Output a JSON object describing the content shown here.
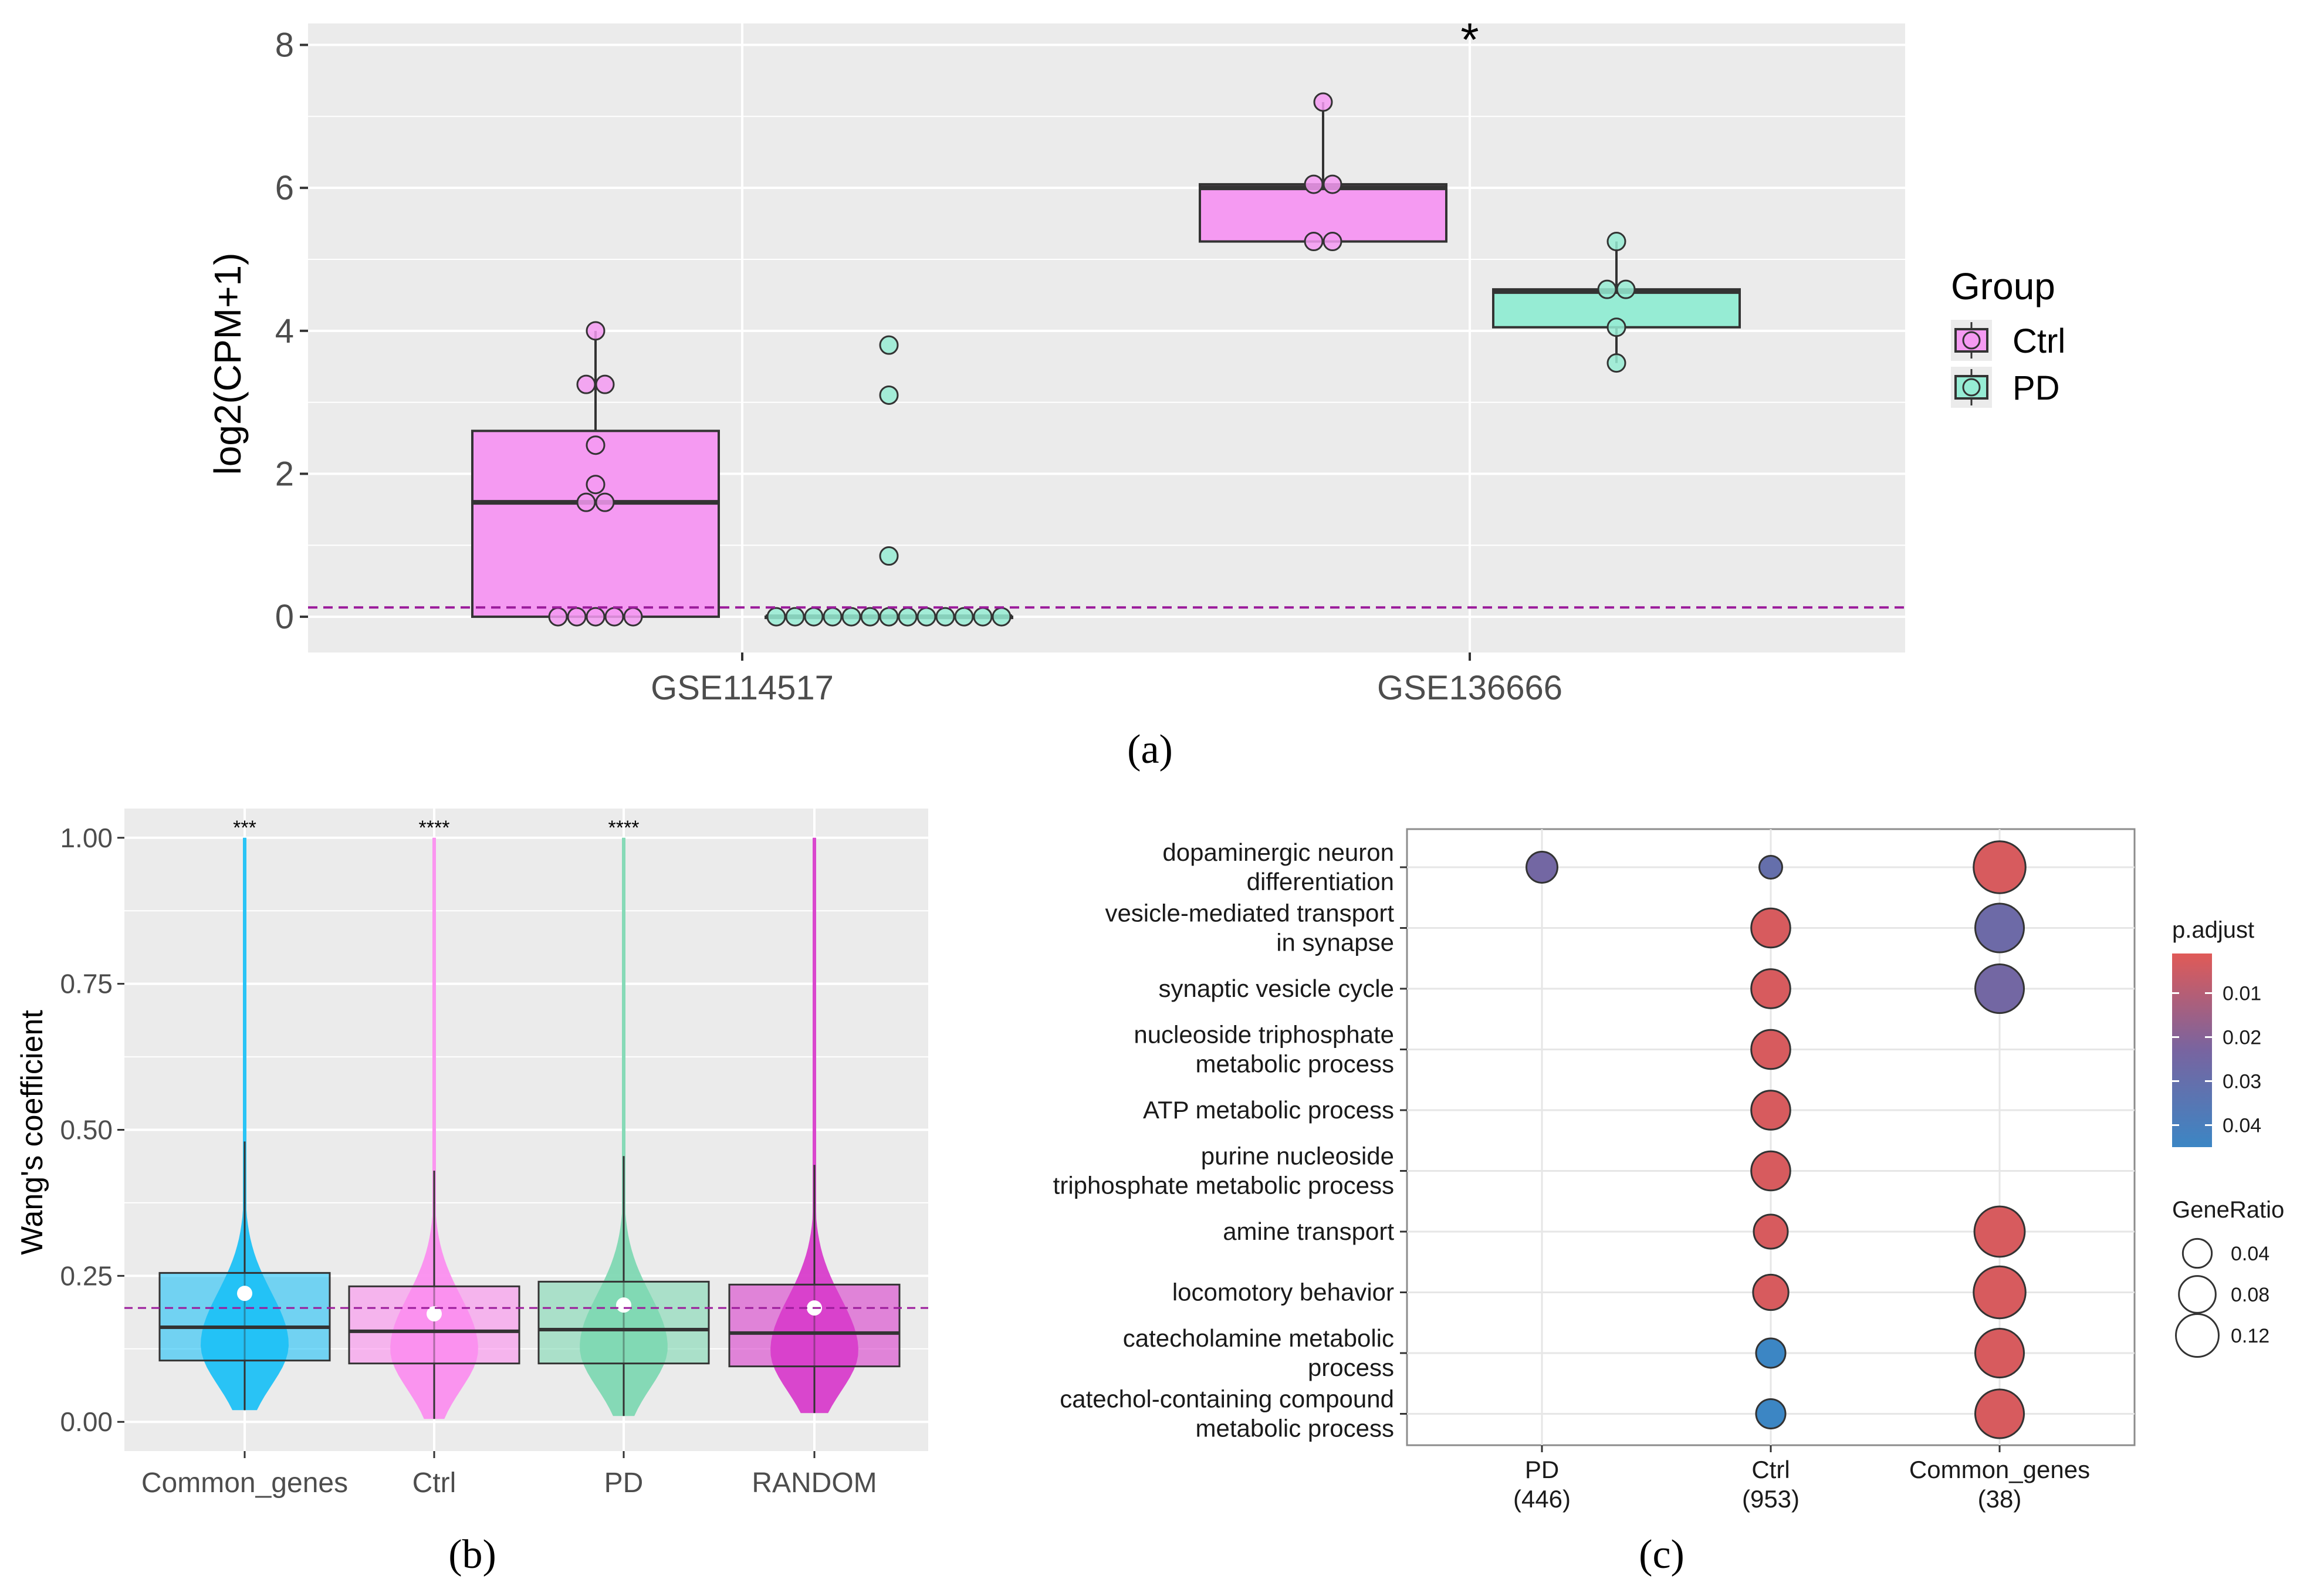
{
  "chart_data": [
    {
      "panel_label": "(a)",
      "type": "box",
      "ylabel": "log2(CPM+1)",
      "xlabel": "",
      "ylim": [
        -0.5,
        8.3
      ],
      "yticks": [
        0,
        2,
        4,
        6,
        8
      ],
      "categories": [
        "GSE114517",
        "GSE136666"
      ],
      "threshold": 0.13,
      "grid": true,
      "legend": {
        "title": "Group",
        "position": "right",
        "entries": [
          "Ctrl",
          "PD"
        ]
      },
      "series": [
        {
          "name": "Ctrl",
          "color": "#F59AF2",
          "boxes": [
            {
              "category": "GSE114517",
              "q1": 0,
              "median": 1.6,
              "q3": 2.6,
              "low": 0,
              "high": 4.0,
              "points": [
                4.0,
                3.25,
                3.25,
                2.4,
                1.85,
                1.6,
                1.6,
                0,
                0,
                0,
                0,
                0
              ]
            },
            {
              "category": "GSE136666",
              "q1": 5.25,
              "median": 6.0,
              "q3": 6.05,
              "low": 5.25,
              "high": 7.2,
              "points": [
                7.2,
                6.05,
                6.05,
                5.25,
                5.25
              ]
            }
          ]
        },
        {
          "name": "PD",
          "color": "#96ECD4",
          "boxes": [
            {
              "category": "GSE114517",
              "q1": 0,
              "median": 0,
              "q3": 0,
              "low": 0,
              "high": 0,
              "points": [
                3.8,
                3.1,
                0.85,
                0,
                0,
                0,
                0,
                0,
                0,
                0,
                0,
                0,
                0,
                0,
                0,
                0
              ]
            },
            {
              "category": "GSE136666",
              "q1": 4.05,
              "median": 4.55,
              "q3": 4.58,
              "low": 3.55,
              "high": 5.25,
              "points": [
                5.25,
                4.58,
                4.58,
                4.05,
                3.55
              ]
            }
          ]
        }
      ],
      "annotations": [
        {
          "category": "GSE136666",
          "text": "*"
        }
      ]
    },
    {
      "panel_label": "(b)",
      "type": "violin-box",
      "ylabel": "Wang's coefficient",
      "xlabel": "",
      "ylim": [
        -0.05,
        1.05
      ],
      "yticks": [
        "0.00",
        "0.25",
        "0.50",
        "0.75",
        "1.00"
      ],
      "threshold": 0.195,
      "categories": [
        "Common_genes",
        "Ctrl",
        "PD",
        "RANDOM"
      ],
      "colors": [
        "#1FC1F6",
        "#FB8FEF",
        "#7FD8B3",
        "#D83DCB"
      ],
      "box": [
        {
          "q1": 0.105,
          "median": 0.162,
          "q3": 0.255,
          "low": 0.02,
          "high": 0.48,
          "mean": 0.22,
          "sig": "***"
        },
        {
          "q1": 0.1,
          "median": 0.155,
          "q3": 0.232,
          "low": 0.005,
          "high": 0.43,
          "mean": 0.185,
          "sig": "****"
        },
        {
          "q1": 0.1,
          "median": 0.158,
          "q3": 0.24,
          "low": 0.01,
          "high": 0.455,
          "mean": 0.2,
          "sig": "****"
        },
        {
          "q1": 0.095,
          "median": 0.152,
          "q3": 0.235,
          "low": 0.015,
          "high": 0.44,
          "mean": 0.195,
          "sig": ""
        }
      ],
      "grid": true
    },
    {
      "panel_label": "(c)",
      "type": "dot",
      "categories": [
        "PD",
        "Ctrl",
        "Common_genes"
      ],
      "category_counts": [
        "(446)",
        "(953)",
        "(38)"
      ],
      "terms": [
        [
          "dopaminergic neuron",
          "differentiation"
        ],
        [
          "vesicle-mediated transport",
          "in synapse"
        ],
        [
          "synaptic vesicle cycle"
        ],
        [
          "nucleoside triphosphate",
          "metabolic process"
        ],
        [
          "ATP metabolic process"
        ],
        [
          "purine nucleoside",
          "triphosphate metabolic process"
        ],
        [
          "amine transport"
        ],
        [
          "locomotory behavior"
        ],
        [
          "catecholamine metabolic",
          "process"
        ],
        [
          "catechol-containing compound",
          "metabolic process"
        ]
      ],
      "points": [
        {
          "term": 0,
          "cat": 0,
          "gene_ratio": 0.03,
          "p_adjust": 0.025
        },
        {
          "term": 0,
          "cat": 1,
          "gene_ratio": 0.01,
          "p_adjust": 0.03
        },
        {
          "term": 0,
          "cat": 2,
          "gene_ratio": 0.13,
          "p_adjust": 0.003
        },
        {
          "term": 1,
          "cat": 1,
          "gene_ratio": 0.06,
          "p_adjust": 0.003
        },
        {
          "term": 1,
          "cat": 2,
          "gene_ratio": 0.11,
          "p_adjust": 0.027
        },
        {
          "term": 2,
          "cat": 1,
          "gene_ratio": 0.06,
          "p_adjust": 0.003
        },
        {
          "term": 2,
          "cat": 2,
          "gene_ratio": 0.11,
          "p_adjust": 0.025
        },
        {
          "term": 3,
          "cat": 1,
          "gene_ratio": 0.06,
          "p_adjust": 0.003
        },
        {
          "term": 4,
          "cat": 1,
          "gene_ratio": 0.06,
          "p_adjust": 0.003
        },
        {
          "term": 5,
          "cat": 1,
          "gene_ratio": 0.06,
          "p_adjust": 0.003
        },
        {
          "term": 6,
          "cat": 1,
          "gene_ratio": 0.04,
          "p_adjust": 0.003
        },
        {
          "term": 6,
          "cat": 2,
          "gene_ratio": 0.12,
          "p_adjust": 0.003
        },
        {
          "term": 7,
          "cat": 1,
          "gene_ratio": 0.045,
          "p_adjust": 0.003
        },
        {
          "term": 7,
          "cat": 2,
          "gene_ratio": 0.13,
          "p_adjust": 0.003
        },
        {
          "term": 8,
          "cat": 1,
          "gene_ratio": 0.025,
          "p_adjust": 0.045
        },
        {
          "term": 8,
          "cat": 2,
          "gene_ratio": 0.11,
          "p_adjust": 0.003
        },
        {
          "term": 9,
          "cat": 1,
          "gene_ratio": 0.025,
          "p_adjust": 0.045
        },
        {
          "term": 9,
          "cat": 2,
          "gene_ratio": 0.11,
          "p_adjust": 0.003
        }
      ],
      "legend_padjust": {
        "title": "p.adjust",
        "ticks": [
          "0.01",
          "0.02",
          "0.03",
          "0.04"
        ],
        "values": [
          0.01,
          0.02,
          0.03,
          0.04
        ],
        "range": [
          0.001,
          0.045
        ],
        "high_color": "#E05A57",
        "low_color": "#3C86C4"
      },
      "legend_generatio": {
        "title": "GeneRatio",
        "ticks": [
          "0.04",
          "0.08",
          "0.12"
        ],
        "values": [
          0.04,
          0.08,
          0.12
        ]
      }
    }
  ]
}
